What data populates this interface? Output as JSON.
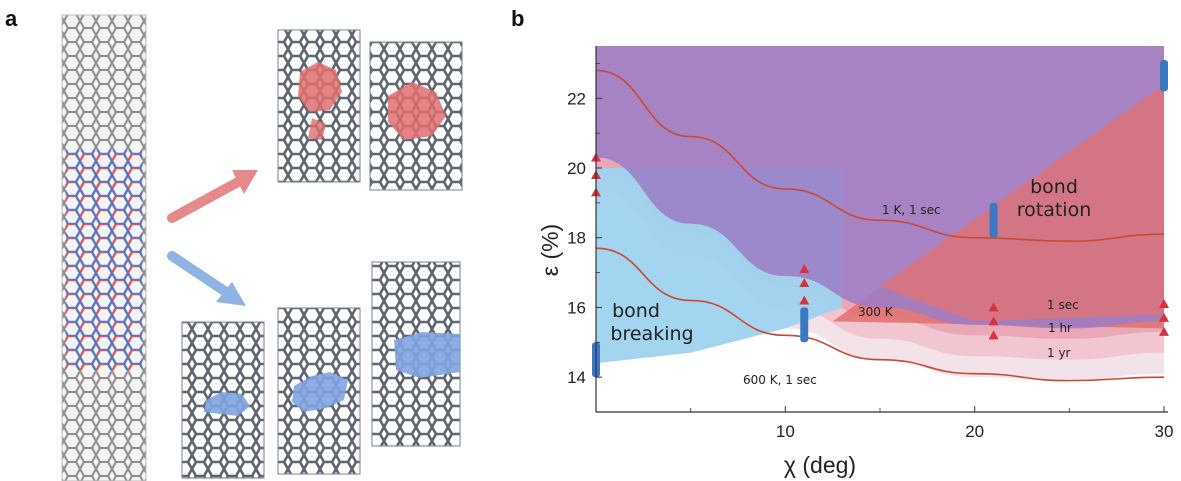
{
  "panel_a": {
    "letter": "a"
  },
  "panel_b": {
    "letter": "b"
  },
  "chart_data": {
    "type": "line",
    "title": "",
    "xlabel": "χ (deg)",
    "ylabel": "ε (%)",
    "xlim": [
      0,
      30
    ],
    "ylim": [
      13,
      23.5
    ],
    "xticks": [
      10,
      20,
      30
    ],
    "yticks": [
      14,
      16,
      18,
      20,
      22
    ],
    "grid": false,
    "series": [
      {
        "name": "1 K, 1 sec",
        "x": [
          0,
          5,
          10,
          15,
          20,
          25,
          30
        ],
        "y": [
          22.8,
          20.9,
          19.4,
          18.5,
          18.0,
          17.9,
          18.1
        ]
      },
      {
        "name": "600 K, 1 sec",
        "x": [
          0,
          5,
          10,
          15,
          20,
          25,
          30
        ],
        "y": [
          17.7,
          16.2,
          15.2,
          14.5,
          14.1,
          13.9,
          14.0
        ]
      }
    ],
    "regions": [
      {
        "label": "bond breaking",
        "color": "#9fd3ef"
      },
      {
        "label": "bond rotation",
        "color": "#e27373"
      },
      {
        "label": "overlap",
        "color": "#9b7cc7"
      }
    ],
    "bars": [
      {
        "x": 0,
        "y_low": 14.0,
        "y_high": 15.0
      },
      {
        "x": 11,
        "y_low": 15.0,
        "y_high": 16.0
      },
      {
        "x": 21,
        "y_low": 18.0,
        "y_high": 19.0
      },
      {
        "x": 30,
        "y_low": 22.2,
        "y_high": 23.1
      }
    ],
    "triangles": [
      {
        "x": 0,
        "y": 20.3
      },
      {
        "x": 0,
        "y": 19.8
      },
      {
        "x": 0,
        "y": 19.3
      },
      {
        "x": 11,
        "y": 17.1
      },
      {
        "x": 11,
        "y": 16.7
      },
      {
        "x": 11,
        "y": 16.2
      },
      {
        "x": 21,
        "y": 16.0
      },
      {
        "x": 21,
        "y": 15.6
      },
      {
        "x": 21,
        "y": 15.2
      },
      {
        "x": 30,
        "y": 16.1
      },
      {
        "x": 30,
        "y": 15.7
      },
      {
        "x": 30,
        "y": 15.3
      }
    ],
    "annotations": {
      "bond_rotation": [
        "bond",
        "rotation"
      ],
      "bond_breaking": [
        "bond",
        "breaking"
      ],
      "label_300k": "300 K",
      "label_1sec": "1 sec",
      "label_1hr": "1 hr",
      "label_1yr": "1 yr",
      "label_1k": "1 K, 1 sec",
      "label_600k": "600 K, 1 sec"
    }
  }
}
